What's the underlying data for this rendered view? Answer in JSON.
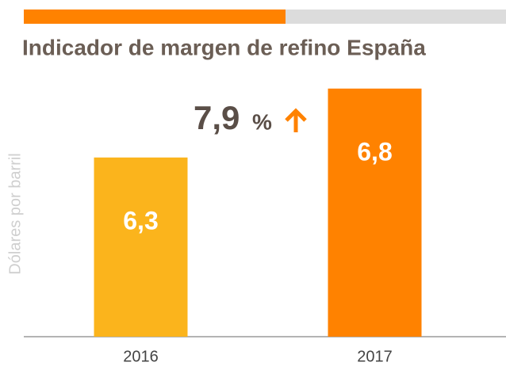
{
  "chart_data": {
    "type": "bar",
    "title": "Indicador de margen de refino España",
    "y_label": "Dólares por barril",
    "annotation": {
      "number": "7,9",
      "unit": "%"
    },
    "categories": [
      "2016",
      "2017"
    ],
    "values": [
      6.3,
      6.8
    ],
    "value_labels": [
      "6,3",
      "6,8"
    ],
    "colors": [
      "#fbb41c",
      "#ff8200"
    ],
    "ylim": [
      5,
      7
    ]
  }
}
